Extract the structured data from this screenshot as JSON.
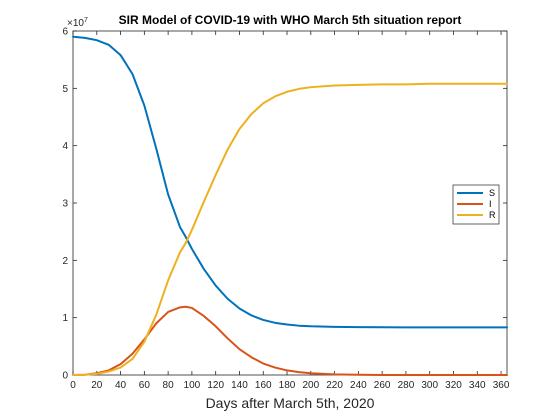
{
  "chart_data": {
    "type": "line",
    "title": "SIR Model of COVID-19 with WHO March 5th situation report",
    "xlabel": "Days after March 5th, 2020",
    "ylabel": "",
    "y_exponent_label": "×10",
    "y_exponent_power": "7",
    "xlim": [
      0,
      365
    ],
    "ylim": [
      0,
      6
    ],
    "x_ticks": [
      "0",
      "20",
      "40",
      "60",
      "80",
      "100",
      "120",
      "140",
      "160",
      "180",
      "200",
      "220",
      "240",
      "260",
      "280",
      "300",
      "320",
      "340",
      "360"
    ],
    "y_ticks": [
      "0",
      "1",
      "2",
      "3",
      "4",
      "5",
      "6"
    ],
    "grid": false,
    "legend_position": "right",
    "x": [
      0,
      10,
      20,
      30,
      40,
      50,
      60,
      70,
      80,
      90,
      95,
      100,
      110,
      120,
      130,
      140,
      150,
      160,
      170,
      180,
      190,
      200,
      220,
      240,
      260,
      280,
      300,
      320,
      340,
      360,
      365
    ],
    "series": [
      {
        "name": "S",
        "color": "#0072BD",
        "values": [
          5.9,
          5.88,
          5.84,
          5.76,
          5.58,
          5.25,
          4.7,
          3.95,
          3.15,
          2.58,
          2.4,
          2.2,
          1.85,
          1.56,
          1.33,
          1.16,
          1.04,
          0.96,
          0.91,
          0.88,
          0.86,
          0.85,
          0.84,
          0.835,
          0.832,
          0.83,
          0.83,
          0.83,
          0.83,
          0.83,
          0.83
        ]
      },
      {
        "name": "I",
        "color": "#D95319",
        "values": [
          0.0,
          0.005,
          0.03,
          0.08,
          0.19,
          0.37,
          0.62,
          0.9,
          1.1,
          1.18,
          1.19,
          1.17,
          1.03,
          0.85,
          0.64,
          0.45,
          0.31,
          0.2,
          0.13,
          0.08,
          0.05,
          0.03,
          0.01,
          0.004,
          0.001,
          0.0,
          0.0,
          0.0,
          0.0,
          0.0,
          0.0
        ]
      },
      {
        "name": "R",
        "color": "#EDB120",
        "values": [
          0.0,
          0.005,
          0.02,
          0.06,
          0.13,
          0.28,
          0.58,
          1.05,
          1.65,
          2.14,
          2.31,
          2.53,
          3.02,
          3.49,
          3.93,
          4.29,
          4.55,
          4.74,
          4.86,
          4.94,
          4.99,
          5.02,
          5.05,
          5.06,
          5.07,
          5.07,
          5.08,
          5.08,
          5.08,
          5.08,
          5.08
        ]
      }
    ]
  }
}
